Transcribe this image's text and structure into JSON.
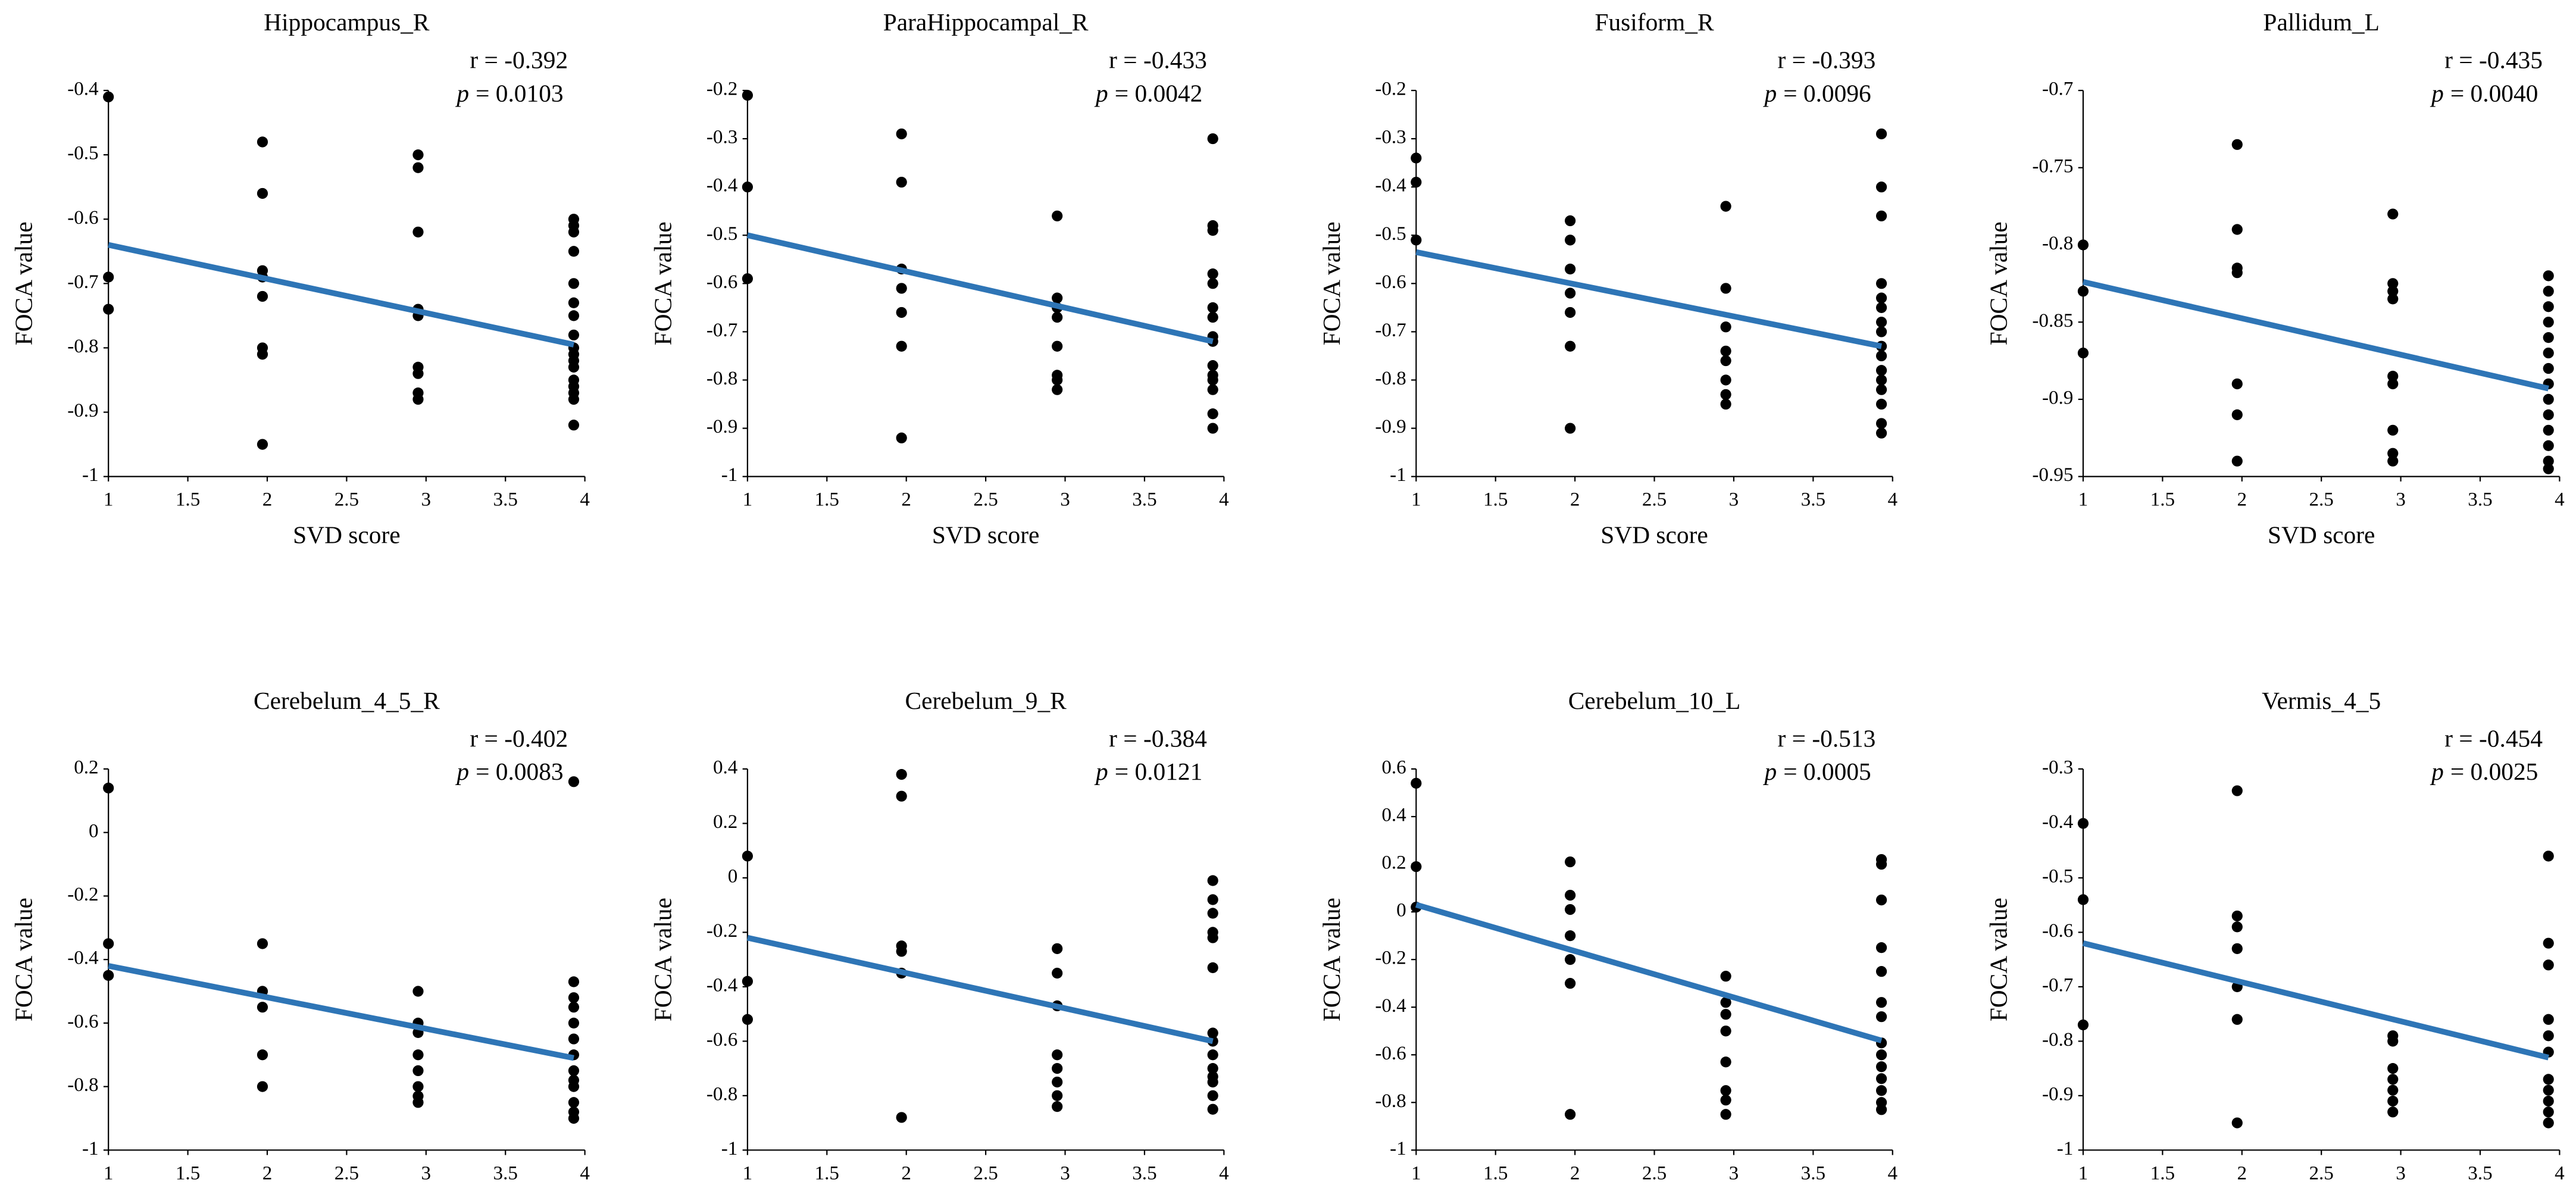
{
  "chart_data": [
    {
      "type": "scatter",
      "title": "Hippocampus_R",
      "xlabel": "SVD score",
      "ylabel": "FOCA value",
      "r_text": "r = -0.392",
      "p_symbol": "p",
      "p_value": "= 0.0103",
      "color": "#000000",
      "x": [
        1,
        1,
        1,
        1.97,
        1.97,
        1.97,
        1.97,
        1.97,
        1.97,
        1.97,
        1.97,
        2.95,
        2.95,
        2.95,
        2.95,
        2.95,
        2.95,
        2.95,
        2.95,
        2.95,
        3.93,
        3.93,
        3.93,
        3.93,
        3.93,
        3.93,
        3.93,
        3.93,
        3.93,
        3.93,
        3.93,
        3.93,
        3.93,
        3.93,
        3.93,
        3.93,
        3.93
      ],
      "values": [
        -0.41,
        -0.69,
        -0.74,
        -0.48,
        -0.56,
        -0.68,
        -0.69,
        -0.72,
        -0.8,
        -0.81,
        -0.95,
        -0.5,
        -0.52,
        -0.62,
        -0.74,
        -0.75,
        -0.83,
        -0.84,
        -0.87,
        -0.88,
        -0.6,
        -0.61,
        -0.62,
        -0.65,
        -0.7,
        -0.73,
        -0.75,
        -0.78,
        -0.8,
        -0.81,
        -0.82,
        -0.83,
        -0.85,
        -0.86,
        -0.87,
        -0.88,
        -0.92
      ],
      "trend": {
        "color": "#2e75b6",
        "x": [
          1,
          3.93
        ],
        "values": [
          -0.64,
          -0.795
        ]
      },
      "xlim": [
        1,
        4
      ],
      "xticks": [
        1,
        1.5,
        2,
        2.5,
        3,
        3.5,
        4
      ],
      "ylim": [
        -1,
        -0.4
      ],
      "yticks": [
        -1,
        -0.9,
        -0.8,
        -0.7,
        -0.6,
        -0.5,
        -0.4
      ]
    },
    {
      "type": "scatter",
      "title": "ParaHippocampal_R",
      "xlabel": "SVD score",
      "ylabel": "FOCA value",
      "r_text": "r = -0.433",
      "p_symbol": "p",
      "p_value": "= 0.0042",
      "color": "#000000",
      "x": [
        1,
        1,
        1,
        1.97,
        1.97,
        1.97,
        1.97,
        1.97,
        1.97,
        1.97,
        2.95,
        2.95,
        2.95,
        2.95,
        2.95,
        2.95,
        2.95,
        2.95,
        3.93,
        3.93,
        3.93,
        3.93,
        3.93,
        3.93,
        3.93,
        3.93,
        3.93,
        3.93,
        3.93,
        3.93,
        3.93,
        3.93,
        3.93
      ],
      "values": [
        -0.21,
        -0.4,
        -0.59,
        -0.29,
        -0.39,
        -0.57,
        -0.61,
        -0.66,
        -0.73,
        -0.92,
        -0.46,
        -0.63,
        -0.65,
        -0.67,
        -0.73,
        -0.79,
        -0.8,
        -0.82,
        -0.3,
        -0.48,
        -0.49,
        -0.58,
        -0.6,
        -0.65,
        -0.67,
        -0.71,
        -0.72,
        -0.77,
        -0.79,
        -0.8,
        -0.82,
        -0.87,
        -0.9
      ],
      "trend": {
        "color": "#2e75b6",
        "x": [
          1,
          3.93
        ],
        "values": [
          -0.5,
          -0.72
        ]
      },
      "xlim": [
        1,
        4
      ],
      "xticks": [
        1,
        1.5,
        2,
        2.5,
        3,
        3.5,
        4
      ],
      "ylim": [
        -1,
        -0.2
      ],
      "yticks": [
        -1,
        -0.9,
        -0.8,
        -0.7,
        -0.6,
        -0.5,
        -0.4,
        -0.3,
        -0.2
      ]
    },
    {
      "type": "scatter",
      "title": "Fusiform_R",
      "xlabel": "SVD score",
      "ylabel": "FOCA value",
      "r_text": "r = -0.393",
      "p_symbol": "p",
      "p_value": "= 0.0096",
      "color": "#000000",
      "x": [
        1,
        1,
        1,
        1.97,
        1.97,
        1.97,
        1.97,
        1.97,
        1.97,
        1.97,
        2.95,
        2.95,
        2.95,
        2.95,
        2.95,
        2.95,
        2.95,
        2.95,
        3.93,
        3.93,
        3.93,
        3.93,
        3.93,
        3.93,
        3.93,
        3.93,
        3.93,
        3.93,
        3.93,
        3.93,
        3.93,
        3.93,
        3.93,
        3.93
      ],
      "values": [
        -0.34,
        -0.39,
        -0.51,
        -0.47,
        -0.51,
        -0.57,
        -0.62,
        -0.66,
        -0.73,
        -0.9,
        -0.44,
        -0.61,
        -0.69,
        -0.74,
        -0.76,
        -0.8,
        -0.83,
        -0.85,
        -0.29,
        -0.4,
        -0.46,
        -0.6,
        -0.63,
        -0.65,
        -0.68,
        -0.7,
        -0.73,
        -0.75,
        -0.78,
        -0.8,
        -0.82,
        -0.85,
        -0.89,
        -0.91
      ],
      "trend": {
        "color": "#2e75b6",
        "x": [
          1,
          3.93
        ],
        "values": [
          -0.535,
          -0.73
        ]
      },
      "xlim": [
        1,
        4
      ],
      "xticks": [
        1,
        1.5,
        2,
        2.5,
        3,
        3.5,
        4
      ],
      "ylim": [
        -1,
        -0.2
      ],
      "yticks": [
        -1,
        -0.9,
        -0.8,
        -0.7,
        -0.6,
        -0.5,
        -0.4,
        -0.3,
        -0.2
      ]
    },
    {
      "type": "scatter",
      "title": "Pallidum_L",
      "xlabel": "SVD score",
      "ylabel": "FOCA value",
      "r_text": "r = -0.435",
      "p_symbol": "p",
      "p_value": "= 0.0040",
      "color": "#000000",
      "x": [
        1,
        1,
        1,
        1.97,
        1.97,
        1.97,
        1.97,
        1.97,
        1.97,
        1.97,
        2.95,
        2.95,
        2.95,
        2.95,
        2.95,
        2.95,
        2.95,
        2.95,
        2.95,
        3.93,
        3.93,
        3.93,
        3.93,
        3.93,
        3.93,
        3.93,
        3.93,
        3.93,
        3.93,
        3.93,
        3.93,
        3.93,
        3.93
      ],
      "values": [
        -0.8,
        -0.83,
        -0.87,
        -0.735,
        -0.79,
        -0.815,
        -0.818,
        -0.89,
        -0.91,
        -0.94,
        -0.78,
        -0.825,
        -0.83,
        -0.835,
        -0.885,
        -0.89,
        -0.92,
        -0.935,
        -0.94,
        -0.82,
        -0.83,
        -0.84,
        -0.85,
        -0.86,
        -0.87,
        -0.88,
        -0.89,
        -0.9,
        -0.91,
        -0.92,
        -0.93,
        -0.94,
        -0.945
      ],
      "trend": {
        "color": "#2e75b6",
        "x": [
          1,
          3.93
        ],
        "values": [
          -0.824,
          -0.893
        ]
      },
      "xlim": [
        1,
        4
      ],
      "xticks": [
        1,
        1.5,
        2,
        2.5,
        3,
        3.5,
        4
      ],
      "ylim": [
        -0.95,
        -0.7
      ],
      "yticks": [
        -0.95,
        -0.9,
        -0.85,
        -0.8,
        -0.75,
        -0.7
      ]
    },
    {
      "type": "scatter",
      "title": "Cerebelum_4_5_R",
      "xlabel": "SVD score",
      "ylabel": "FOCA value",
      "r_text": "r = -0.402",
      "p_symbol": "p",
      "p_value": "= 0.0083",
      "color": "#000000",
      "x": [
        1,
        1,
        1,
        1.97,
        1.97,
        1.97,
        1.97,
        1.97,
        2.95,
        2.95,
        2.95,
        2.95,
        2.95,
        2.95,
        2.95,
        2.95,
        3.93,
        3.93,
        3.93,
        3.93,
        3.93,
        3.93,
        3.93,
        3.93,
        3.93,
        3.93,
        3.93,
        3.93,
        3.93
      ],
      "values": [
        0.14,
        -0.35,
        -0.45,
        -0.35,
        -0.5,
        -0.55,
        -0.7,
        -0.8,
        -0.5,
        -0.6,
        -0.63,
        -0.7,
        -0.75,
        -0.8,
        -0.83,
        -0.85,
        0.16,
        -0.47,
        -0.52,
        -0.55,
        -0.6,
        -0.65,
        -0.7,
        -0.75,
        -0.78,
        -0.8,
        -0.85,
        -0.88,
        -0.9
      ],
      "trend": {
        "color": "#2e75b6",
        "x": [
          1,
          3.93
        ],
        "values": [
          -0.42,
          -0.71
        ]
      },
      "xlim": [
        1,
        4
      ],
      "xticks": [
        1,
        1.5,
        2,
        2.5,
        3,
        3.5,
        4
      ],
      "ylim": [
        -1,
        0.2
      ],
      "yticks": [
        -1,
        -0.8,
        -0.6,
        -0.4,
        -0.2,
        0,
        0.2
      ]
    },
    {
      "type": "scatter",
      "title": "Cerebelum_9_R",
      "xlabel": "SVD score",
      "ylabel": "FOCA value",
      "r_text": "r = -0.384",
      "p_symbol": "p",
      "p_value": "= 0.0121",
      "color": "#000000",
      "x": [
        1,
        1,
        1,
        1.97,
        1.97,
        1.97,
        1.97,
        1.97,
        1.97,
        2.95,
        2.95,
        2.95,
        2.95,
        2.95,
        2.95,
        2.95,
        2.95,
        3.93,
        3.93,
        3.93,
        3.93,
        3.93,
        3.93,
        3.93,
        3.93,
        3.93,
        3.93,
        3.93,
        3.93,
        3.93,
        3.93
      ],
      "values": [
        0.08,
        -0.38,
        -0.52,
        0.38,
        0.3,
        -0.25,
        -0.27,
        -0.35,
        -0.88,
        -0.26,
        -0.35,
        -0.47,
        -0.65,
        -0.7,
        -0.75,
        -0.8,
        -0.84,
        -0.01,
        -0.08,
        -0.13,
        -0.2,
        -0.22,
        -0.33,
        -0.57,
        -0.6,
        -0.65,
        -0.7,
        -0.73,
        -0.75,
        -0.8,
        -0.85
      ],
      "trend": {
        "color": "#2e75b6",
        "x": [
          1,
          3.93
        ],
        "values": [
          -0.22,
          -0.6
        ]
      },
      "xlim": [
        1,
        4
      ],
      "xticks": [
        1,
        1.5,
        2,
        2.5,
        3,
        3.5,
        4
      ],
      "ylim": [
        -1,
        0.4
      ],
      "yticks": [
        -1,
        -0.8,
        -0.6,
        -0.4,
        -0.2,
        0,
        0.2,
        0.4
      ]
    },
    {
      "type": "scatter",
      "title": "Cerebelum_10_L",
      "xlabel": "SVD score",
      "ylabel": "FOCA value",
      "r_text": "r = -0.513",
      "p_symbol": "p",
      "p_value": "= 0.0005",
      "color": "#000000",
      "x": [
        1,
        1,
        1,
        1.97,
        1.97,
        1.97,
        1.97,
        1.97,
        1.97,
        1.97,
        2.95,
        2.95,
        2.95,
        2.95,
        2.95,
        2.95,
        2.95,
        2.95,
        3.93,
        3.93,
        3.93,
        3.93,
        3.93,
        3.93,
        3.93,
        3.93,
        3.93,
        3.93,
        3.93,
        3.93,
        3.93,
        3.93
      ],
      "values": [
        0.54,
        0.19,
        0.02,
        0.21,
        0.07,
        0.01,
        -0.1,
        -0.2,
        -0.3,
        -0.85,
        -0.27,
        -0.38,
        -0.43,
        -0.5,
        -0.63,
        -0.75,
        -0.79,
        -0.85,
        0.22,
        0.2,
        0.05,
        -0.15,
        -0.25,
        -0.38,
        -0.44,
        -0.55,
        -0.6,
        -0.65,
        -0.7,
        -0.75,
        -0.8,
        -0.83
      ],
      "trend": {
        "color": "#2e75b6",
        "x": [
          1,
          3.93
        ],
        "values": [
          0.03,
          -0.54
        ]
      },
      "xlim": [
        1,
        4
      ],
      "xticks": [
        1,
        1.5,
        2,
        2.5,
        3,
        3.5,
        4
      ],
      "ylim": [
        -1,
        0.6
      ],
      "yticks": [
        -1,
        -0.8,
        -0.6,
        -0.4,
        -0.2,
        0,
        0.2,
        0.4,
        0.6
      ]
    },
    {
      "type": "scatter",
      "title": "Vermis_4_5",
      "xlabel": "SVD score",
      "ylabel": "FOCA value",
      "r_text": "r = -0.454",
      "p_symbol": "p",
      "p_value": "= 0.0025",
      "color": "#000000",
      "x": [
        1,
        1,
        1,
        1.97,
        1.97,
        1.97,
        1.97,
        1.97,
        1.97,
        1.97,
        2.95,
        2.95,
        2.95,
        2.95,
        2.95,
        2.95,
        2.95,
        3.93,
        3.93,
        3.93,
        3.93,
        3.93,
        3.93,
        3.93,
        3.93,
        3.93,
        3.93,
        3.93
      ],
      "values": [
        -0.4,
        -0.54,
        -0.77,
        -0.34,
        -0.57,
        -0.59,
        -0.63,
        -0.7,
        -0.76,
        -0.95,
        -0.79,
        -0.8,
        -0.85,
        -0.87,
        -0.89,
        -0.91,
        -0.93,
        -0.46,
        -0.62,
        -0.66,
        -0.76,
        -0.79,
        -0.82,
        -0.87,
        -0.89,
        -0.91,
        -0.93,
        -0.95
      ],
      "trend": {
        "color": "#2e75b6",
        "x": [
          1,
          3.93
        ],
        "values": [
          -0.62,
          -0.83
        ]
      },
      "xlim": [
        1,
        4
      ],
      "xticks": [
        1,
        1.5,
        2,
        2.5,
        3,
        3.5,
        4
      ],
      "ylim": [
        -1,
        -0.3
      ],
      "yticks": [
        -1,
        -0.9,
        -0.8,
        -0.7,
        -0.6,
        -0.5,
        -0.4,
        -0.3
      ]
    }
  ]
}
